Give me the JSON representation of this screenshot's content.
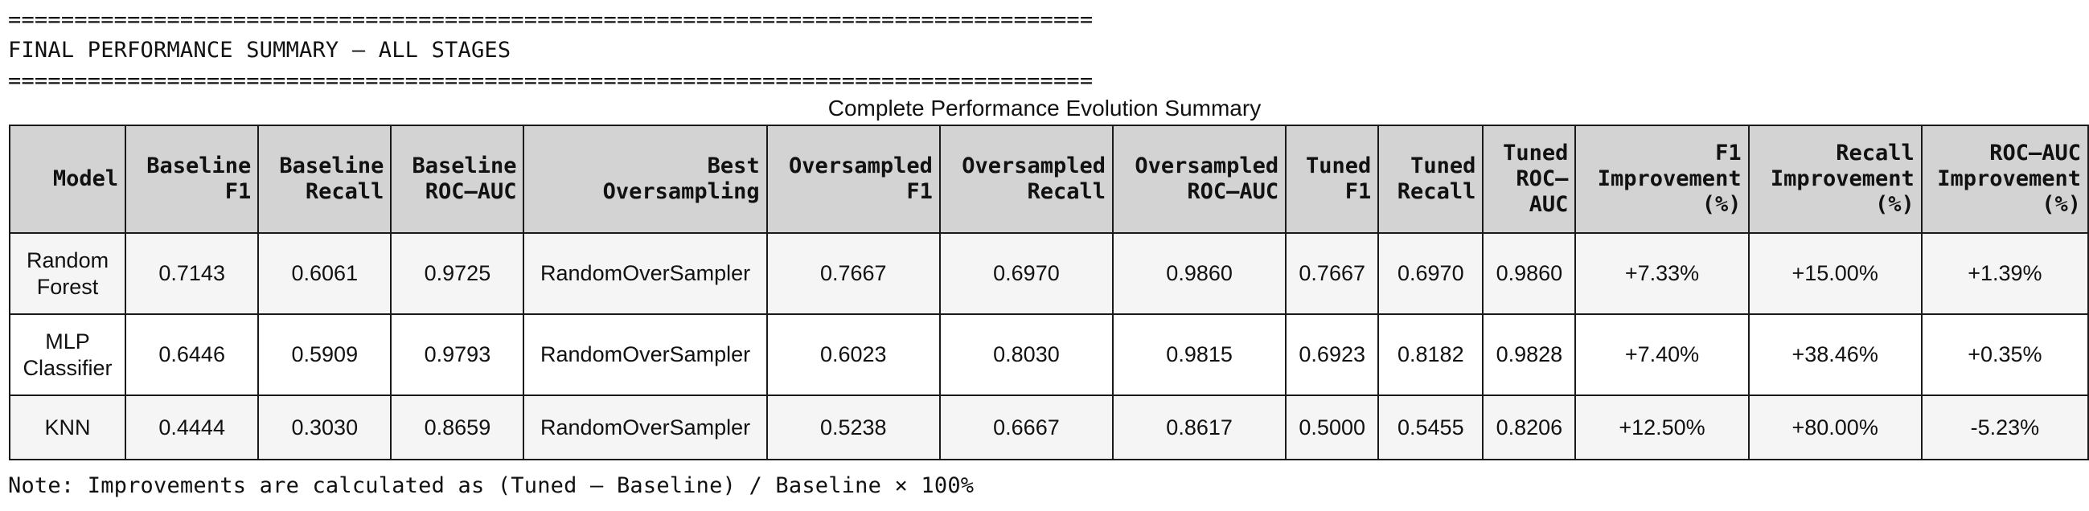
{
  "header": {
    "rule_top": "==================================================================================",
    "title": "FINAL PERFORMANCE SUMMARY – ALL STAGES",
    "rule_bottom": "=================================================================================="
  },
  "table": {
    "title": "Complete Performance Evolution Summary",
    "columns": [
      "Model",
      "Baseline\nF1",
      "Baseline\nRecall",
      "Baseline\nROC–AUC",
      "Best\nOversampling",
      "Oversampled\nF1",
      "Oversampled\nRecall",
      "Oversampled\nROC–AUC",
      "Tuned\nF1",
      "Tuned\nRecall",
      "Tuned\nROC–\nAUC",
      "F1\nImprovement\n(%)",
      "Recall\nImprovement\n(%)",
      "ROC–AUC\nImprovement\n(%)"
    ],
    "rows": [
      [
        "Random\nForest",
        "0.7143",
        "0.6061",
        "0.9725",
        "RandomOverSampler",
        "0.7667",
        "0.6970",
        "0.9860",
        "0.7667",
        "0.6970",
        "0.9860",
        "+7.33%",
        "+15.00%",
        "+1.39%"
      ],
      [
        "MLP\nClassifier",
        "0.6446",
        "0.5909",
        "0.9793",
        "RandomOverSampler",
        "0.6023",
        "0.8030",
        "0.9815",
        "0.6923",
        "0.8182",
        "0.9828",
        "+7.40%",
        "+38.46%",
        "+0.35%"
      ],
      [
        "KNN",
        "0.4444",
        "0.3030",
        "0.8659",
        "RandomOverSampler",
        "0.5238",
        "0.6667",
        "0.8617",
        "0.5000",
        "0.5455",
        "0.8206",
        "+12.50%",
        "+80.00%",
        "-5.23%"
      ]
    ]
  },
  "note": "Note: Improvements are calculated as (Tuned – Baseline) / Baseline × 100%",
  "colors": {
    "header_bg": "#d3d3d3",
    "row_alt_bg": "#f5f5f5",
    "border": "#1a1a1a"
  }
}
